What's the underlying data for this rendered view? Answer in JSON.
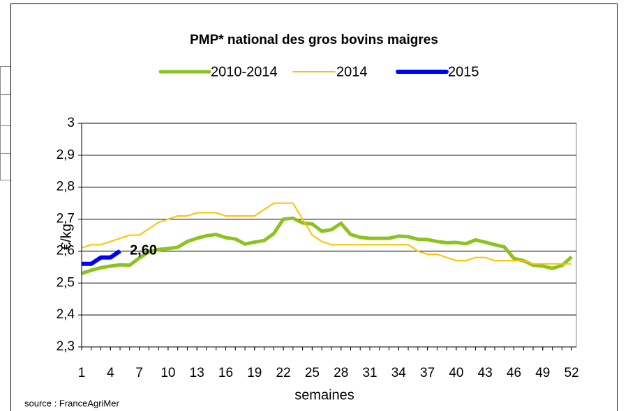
{
  "chart_data": {
    "type": "line",
    "title": "PMP* national des gros bovins maigres",
    "x_label": "semaines",
    "y_label": "€/kg",
    "source": "source : FranceAgriMer",
    "x": [
      1,
      2,
      3,
      4,
      5,
      6,
      7,
      8,
      9,
      10,
      11,
      12,
      13,
      14,
      15,
      16,
      17,
      18,
      19,
      20,
      21,
      22,
      23,
      24,
      25,
      26,
      27,
      28,
      29,
      30,
      31,
      32,
      33,
      34,
      35,
      36,
      37,
      38,
      39,
      40,
      41,
      42,
      43,
      44,
      45,
      46,
      47,
      48,
      49,
      50,
      51,
      52
    ],
    "xlim": [
      1,
      52.5
    ],
    "xticks": [
      1,
      4,
      7,
      10,
      13,
      16,
      19,
      22,
      25,
      28,
      31,
      34,
      37,
      40,
      43,
      46,
      49,
      52
    ],
    "ylim": [
      2.3,
      3
    ],
    "yticks": [
      {
        "value": 2.3,
        "label": "2,3"
      },
      {
        "value": 2.4,
        "label": "2,4"
      },
      {
        "value": 2.5,
        "label": "2,5"
      },
      {
        "value": 2.6,
        "label": "2,6"
      },
      {
        "value": 2.7,
        "label": "2,7"
      },
      {
        "value": 2.8,
        "label": "2,8"
      },
      {
        "value": 2.9,
        "label": "2,9"
      },
      {
        "value": 3,
        "label": "3"
      }
    ],
    "grid": true,
    "series": [
      {
        "name": "2010-2014",
        "color": "#8cc31f",
        "width": 5,
        "values": [
          2.53,
          2.54,
          2.548,
          2.553,
          2.557,
          2.556,
          2.578,
          2.598,
          2.605,
          2.608,
          2.612,
          2.63,
          2.64,
          2.648,
          2.652,
          2.642,
          2.638,
          2.622,
          2.628,
          2.633,
          2.655,
          2.7,
          2.703,
          2.688,
          2.685,
          2.662,
          2.667,
          2.687,
          2.652,
          2.643,
          2.64,
          2.64,
          2.64,
          2.647,
          2.645,
          2.637,
          2.636,
          2.63,
          2.626,
          2.627,
          2.623,
          2.635,
          2.628,
          2.62,
          2.613,
          2.577,
          2.57,
          2.556,
          2.553,
          2.546,
          2.555,
          2.582
        ]
      },
      {
        "name": "2014",
        "color": "#ffc000",
        "width": 2,
        "values": [
          2.61,
          2.62,
          2.62,
          2.63,
          2.64,
          2.65,
          2.65,
          2.67,
          2.69,
          2.7,
          2.71,
          2.71,
          2.72,
          2.72,
          2.72,
          2.71,
          2.71,
          2.71,
          2.71,
          2.73,
          2.75,
          2.75,
          2.75,
          2.7,
          2.65,
          2.63,
          2.62,
          2.62,
          2.62,
          2.62,
          2.62,
          2.62,
          2.62,
          2.62,
          2.62,
          2.6,
          2.59,
          2.59,
          2.58,
          2.57,
          2.57,
          2.58,
          2.58,
          2.57,
          2.57,
          2.57,
          2.57,
          2.56,
          2.56,
          2.56,
          2.56,
          2.56
        ]
      },
      {
        "name": "2015",
        "color": "#0000ff",
        "width": 6,
        "values": [
          2.56,
          2.56,
          2.58,
          2.58,
          2.6,
          null,
          null,
          null,
          null,
          null,
          null,
          null,
          null,
          null,
          null,
          null,
          null,
          null,
          null,
          null,
          null,
          null,
          null,
          null,
          null,
          null,
          null,
          null,
          null,
          null,
          null,
          null,
          null,
          null,
          null,
          null,
          null,
          null,
          null,
          null,
          null,
          null,
          null,
          null,
          null,
          null,
          null,
          null,
          null,
          null,
          null,
          null
        ]
      }
    ],
    "annotation": {
      "text": "2,60",
      "series": 2,
      "index": 4,
      "value": 2.6
    }
  }
}
